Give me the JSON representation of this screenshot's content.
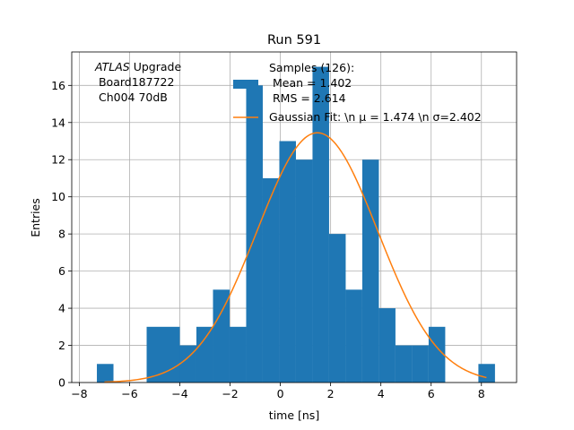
{
  "chart_data": {
    "type": "bar",
    "title": "Run 591",
    "xlabel": "time [ns]",
    "ylabel": "Entries",
    "xlim": [
      -8.3,
      9.4
    ],
    "ylim": [
      0,
      17.8
    ],
    "xticks": [
      -8,
      -6,
      -4,
      -2,
      0,
      2,
      4,
      6,
      8
    ],
    "xtick_labels": [
      "−8",
      "−6",
      "−4",
      "−2",
      "0",
      "2",
      "4",
      "6",
      "8"
    ],
    "yticks": [
      0,
      2,
      4,
      6,
      8,
      10,
      12,
      14,
      16
    ],
    "ytick_labels": [
      "0",
      "2",
      "4",
      "6",
      "8",
      "10",
      "12",
      "14",
      "16"
    ],
    "grid": true,
    "bin_edges": [
      -7.3,
      -6.64,
      -5.98,
      -5.32,
      -4.66,
      -4.0,
      -3.34,
      -2.68,
      -2.02,
      -1.36,
      -0.7,
      -0.04,
      0.62,
      1.28,
      1.94,
      2.6,
      3.26,
      3.92,
      4.58,
      5.24,
      5.9,
      6.56,
      7.22,
      7.88,
      8.54
    ],
    "counts": [
      1,
      0,
      0,
      3,
      3,
      2,
      3,
      5,
      3,
      16,
      11,
      13,
      12,
      17,
      8,
      5,
      12,
      4,
      2,
      2,
      3,
      0,
      0,
      1
    ],
    "bar_color": "#1f77b4",
    "fit": {
      "mu": 1.474,
      "sigma": 2.402,
      "amplitude": 13.45,
      "x_range": [
        -7,
        8.2
      ],
      "color": "#ff7f0e"
    },
    "annotation": {
      "line1_italic": "ATLAS",
      "line1_rest": " Upgrade",
      "line2": " Board187722",
      "line3": " Ch004 70dB"
    },
    "legend": {
      "placement": "top-right",
      "entries": [
        {
          "kind": "patch",
          "lines": [
            "Samples (126):",
            " Mean = 1.402",
            " RMS = 2.614"
          ]
        },
        {
          "kind": "line",
          "lines": [
            "Gaussian Fit: \\n μ = 1.474 \\n σ=2.402"
          ]
        }
      ]
    }
  }
}
